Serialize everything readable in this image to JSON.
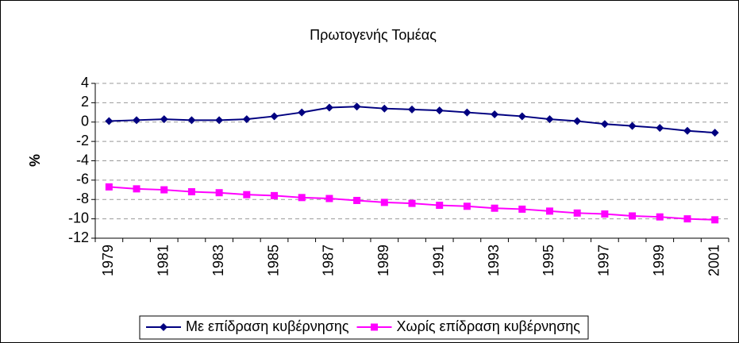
{
  "chart_data": {
    "type": "line",
    "title": "Πρωτογενής Τομέας",
    "y_label": "%",
    "categories": [
      "1979",
      null,
      "1981",
      null,
      "1983",
      null,
      "1985",
      null,
      "1987",
      null,
      "1989",
      null,
      "1991",
      null,
      "1993",
      null,
      "1995",
      null,
      "1997",
      null,
      "1999",
      null,
      "2001"
    ],
    "series": [
      {
        "name": "Με επίδραση κυβέρνησης",
        "color": "#000080",
        "marker": "diamond",
        "values": [
          0.1,
          0.2,
          0.3,
          0.2,
          0.2,
          0.3,
          0.6,
          1.0,
          1.5,
          1.6,
          1.4,
          1.3,
          1.2,
          1.0,
          0.8,
          0.6,
          0.3,
          0.1,
          -0.2,
          -0.4,
          -0.6,
          -0.9,
          -1.1
        ]
      },
      {
        "name": "Χωρίς επίδραση κυβέρνησης",
        "color": "#ff00ff",
        "marker": "square",
        "values": [
          -6.7,
          -6.9,
          -7.0,
          -7.2,
          -7.3,
          -7.5,
          -7.6,
          -7.8,
          -7.9,
          -8.1,
          -8.3,
          -8.4,
          -8.6,
          -8.7,
          -8.9,
          -9.0,
          -9.2,
          -9.4,
          -9.5,
          -9.7,
          -9.8,
          -10.0,
          -10.1
        ]
      }
    ],
    "ylim": [
      -12,
      4
    ],
    "yticks": [
      -12,
      -10,
      -8,
      -6,
      -4,
      -2,
      0,
      2,
      4
    ],
    "grid": true,
    "legend": "bottom"
  }
}
